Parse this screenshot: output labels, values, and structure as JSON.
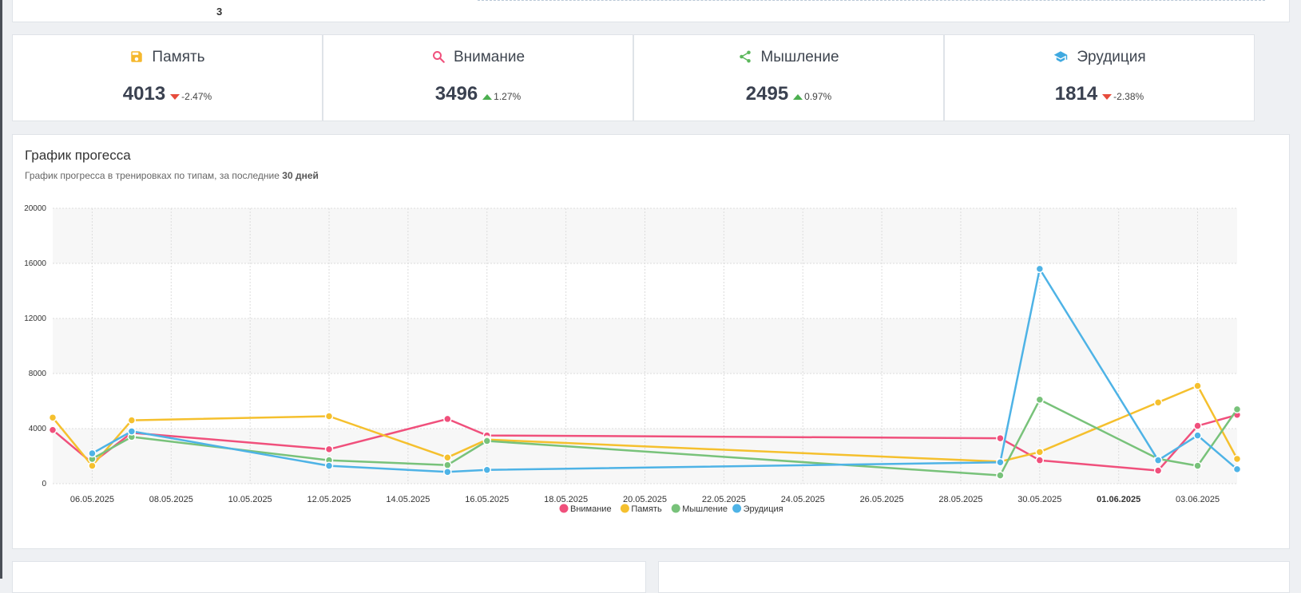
{
  "top": {
    "count": "3"
  },
  "stats": [
    {
      "title": "Память",
      "value": "4013",
      "delta": "-2.47%",
      "dir": "down",
      "color": "#f5b82e",
      "icon": "floppy-disk-icon"
    },
    {
      "title": "Внимание",
      "value": "3496",
      "delta": "1.27%",
      "dir": "up",
      "color": "#f0507c",
      "icon": "search-icon"
    },
    {
      "title": "Мышление",
      "value": "2495",
      "delta": "0.97%",
      "dir": "up",
      "color": "#5cb85c",
      "icon": "share-icon"
    },
    {
      "title": "Эрудиция",
      "value": "1814",
      "delta": "-2.38%",
      "dir": "down",
      "color": "#3fa9e0",
      "icon": "graduation-cap-icon"
    }
  ],
  "chart": {
    "title": "График прогесса",
    "subtitle_prefix": "График прогресса в тренировках по типам, за последние ",
    "subtitle_bold": "30 дней"
  },
  "chart_data": {
    "type": "line",
    "xlabel": "",
    "ylabel": "",
    "ylim": [
      0,
      20000
    ],
    "yticks": [
      "0",
      "4000",
      "8000",
      "12000",
      "16000",
      "20000"
    ],
    "xticks": [
      {
        "label": "06.05.2025",
        "d": 1
      },
      {
        "label": "08.05.2025",
        "d": 3
      },
      {
        "label": "10.05.2025",
        "d": 5
      },
      {
        "label": "12.05.2025",
        "d": 7
      },
      {
        "label": "14.05.2025",
        "d": 9
      },
      {
        "label": "16.05.2025",
        "d": 11
      },
      {
        "label": "18.05.2025",
        "d": 13
      },
      {
        "label": "20.05.2025",
        "d": 15
      },
      {
        "label": "22.05.2025",
        "d": 17
      },
      {
        "label": "24.05.2025",
        "d": 19
      },
      {
        "label": "26.05.2025",
        "d": 21
      },
      {
        "label": "28.05.2025",
        "d": 23
      },
      {
        "label": "30.05.2025",
        "d": 25
      },
      {
        "label": "01.06.2025",
        "d": 27,
        "bold": true
      },
      {
        "label": "03.06.2025",
        "d": 29
      }
    ],
    "series": [
      {
        "name": "Внимание",
        "color": "#f0507c",
        "points": [
          [
            0,
            3900
          ],
          [
            1,
            1500
          ],
          [
            2,
            3700
          ],
          [
            7,
            2500
          ],
          [
            10,
            4700
          ],
          [
            11,
            3500
          ],
          [
            24,
            3300
          ],
          [
            25,
            1700
          ],
          [
            28,
            950
          ],
          [
            29,
            4200
          ],
          [
            30,
            5000
          ]
        ]
      },
      {
        "name": "Память",
        "color": "#f5c02e",
        "points": [
          [
            0,
            4800
          ],
          [
            1,
            1300
          ],
          [
            2,
            4600
          ],
          [
            7,
            4900
          ],
          [
            10,
            1900
          ],
          [
            11,
            3200
          ],
          [
            24,
            1600
          ],
          [
            25,
            2300
          ],
          [
            28,
            5900
          ],
          [
            29,
            7100
          ],
          [
            30,
            1800
          ]
        ]
      },
      {
        "name": "Мышление",
        "color": "#78c27a",
        "points": [
          [
            0,
            null
          ],
          [
            1,
            1800
          ],
          [
            2,
            3400
          ],
          [
            7,
            1700
          ],
          [
            10,
            1350
          ],
          [
            11,
            3100
          ],
          [
            24,
            600
          ],
          [
            25,
            6100
          ],
          [
            28,
            1800
          ],
          [
            29,
            1300
          ],
          [
            30,
            5400
          ]
        ]
      },
      {
        "name": "Эрудиция",
        "color": "#4eb3e6",
        "points": [
          [
            1,
            2200
          ],
          [
            2,
            3800
          ],
          [
            7,
            1300
          ],
          [
            10,
            850
          ],
          [
            11,
            1000
          ],
          [
            24,
            1550
          ],
          [
            25,
            15600
          ],
          [
            28,
            1700
          ],
          [
            29,
            3500
          ],
          [
            30,
            1050
          ]
        ]
      }
    ],
    "legend": "bottom-center",
    "grid": true
  }
}
